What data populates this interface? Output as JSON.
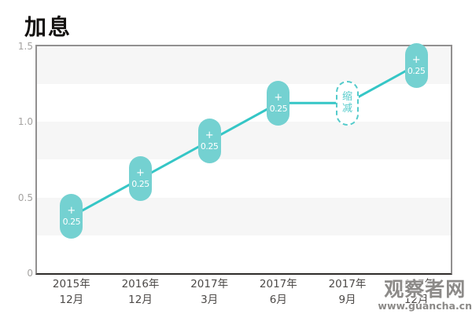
{
  "title": "加息",
  "watermark": {
    "name": "观察者网",
    "url": "www.guancha.cn"
  },
  "chart_data": {
    "type": "line",
    "title": "加息",
    "categories": [
      [
        "2015年",
        "12月"
      ],
      [
        "2016年",
        "12月"
      ],
      [
        "2017年",
        "3月"
      ],
      [
        "2017年",
        "6月"
      ],
      [
        "2017年",
        "9月"
      ],
      [
        "2017年",
        "12月"
      ]
    ],
    "values": [
      0.375,
      0.625,
      0.875,
      1.125,
      1.125,
      1.375
    ],
    "points": [
      {
        "marker": "pill-filled",
        "label_lines": [
          "+",
          "0.25"
        ],
        "range": [
          0.25,
          0.5
        ]
      },
      {
        "marker": "pill-filled",
        "label_lines": [
          "+",
          "0.25"
        ],
        "range": [
          0.5,
          0.75
        ]
      },
      {
        "marker": "pill-filled",
        "label_lines": [
          "+",
          "0.25"
        ],
        "range": [
          0.75,
          1.0
        ]
      },
      {
        "marker": "pill-filled",
        "label_lines": [
          "+",
          "0.25"
        ],
        "range": [
          1.0,
          1.25
        ]
      },
      {
        "marker": "pill-dashed",
        "label_lines": [
          "缩",
          "减"
        ],
        "range": [
          1.0,
          1.25
        ]
      },
      {
        "marker": "pill-filled",
        "label_lines": [
          "+",
          "0.25"
        ],
        "range": [
          1.25,
          1.5
        ]
      }
    ],
    "ylim": [
      0,
      1.5
    ],
    "yticks": [
      {
        "value": 0,
        "label": "0"
      },
      {
        "value": 0.5,
        "label": "0.5"
      },
      {
        "value": 1.0,
        "label": "1.0"
      },
      {
        "value": 1.5,
        "label": "1.5"
      }
    ],
    "grid_bands": [
      [
        0.25,
        0.5
      ],
      [
        0.75,
        1.0
      ],
      [
        1.25,
        1.5
      ]
    ],
    "legend": false,
    "colors": {
      "line": "#35c6c6",
      "marker_fill": "#74d1d1",
      "marker_text": "#ffffff",
      "dashed_marker": "#55cbcb",
      "band": "#f6f6f6",
      "border": "#929090",
      "axis": "#2e2b29"
    }
  }
}
